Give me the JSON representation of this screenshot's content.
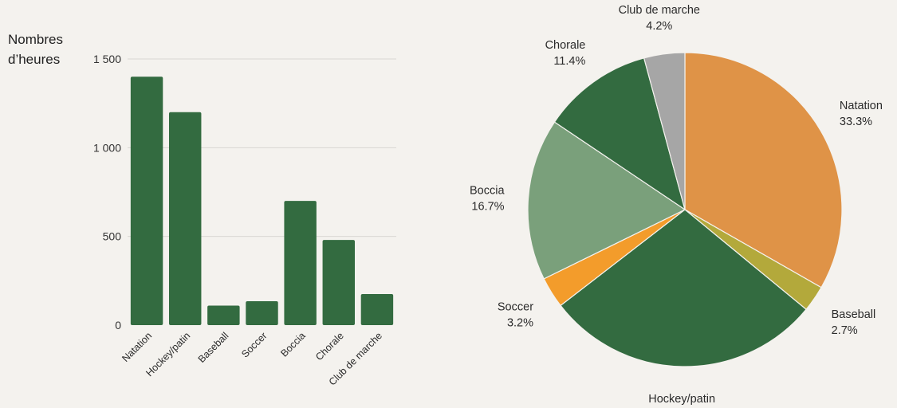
{
  "chart_data": [
    {
      "type": "bar",
      "ylabel_lines": [
        "Nombres",
        "d’heures"
      ],
      "categories": [
        "Natation",
        "Hockey/patin",
        "Baseball",
        "Soccer",
        "Boccia",
        "Chorale",
        "Club de marche"
      ],
      "values": [
        1400,
        1200,
        110,
        135,
        700,
        480,
        175
      ],
      "ylim": [
        0,
        1500
      ],
      "yticks": [
        0,
        500,
        1000,
        1500
      ],
      "ytick_labels": [
        "0",
        "500",
        "1 000",
        "1 500"
      ],
      "grid": true,
      "bar_color": "#336b40"
    },
    {
      "type": "pie",
      "slices": [
        {
          "label": "Natation",
          "value": 33.3,
          "display": "33.3%",
          "color": "#df9347"
        },
        {
          "label": "Baseball",
          "value": 2.7,
          "display": "2.7%",
          "color": "#b3a93b"
        },
        {
          "label": "Hockey/patin",
          "value": 28.6,
          "display": "28.6%",
          "color": "#336b40"
        },
        {
          "label": "Soccer",
          "value": 3.2,
          "display": "3.2%",
          "color": "#f39c2b"
        },
        {
          "label": "Boccia",
          "value": 16.7,
          "display": "16.7%",
          "color": "#7aa07b"
        },
        {
          "label": "Chorale",
          "value": 11.4,
          "display": "11.4%",
          "color": "#336b40"
        },
        {
          "label": "Club de marche",
          "value": 4.2,
          "display": "4.2%",
          "color": "#a6a6a6"
        }
      ],
      "start": "top",
      "direction": "clockwise"
    }
  ]
}
